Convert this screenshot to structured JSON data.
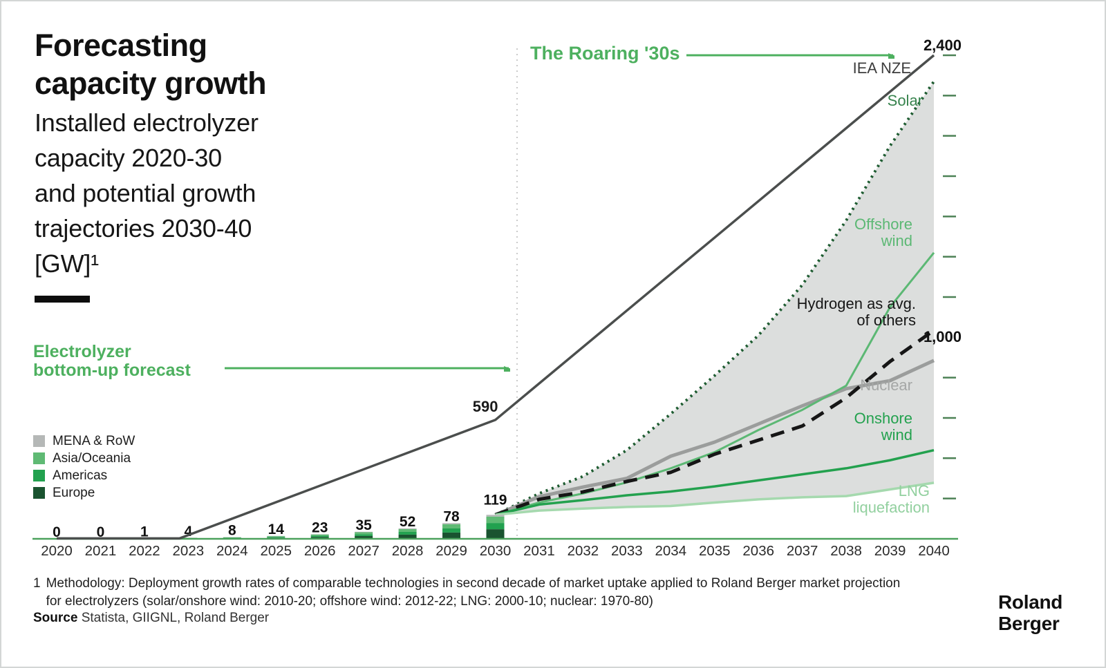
{
  "header": {
    "title": "Forecasting\ncapacity growth",
    "subtitle": "Installed electrolyzer\ncapacity 2020-30\nand potential growth\ntrajectories 2030-40\n[GW]¹"
  },
  "annotations": {
    "bottom_up_forecast": "Electrolyzer\nbottom-up forecast",
    "roaring_30s": "The Roaring '30s",
    "iea_nze": "IEA NZE",
    "solar": "Solar",
    "offshore_wind": "Offshore\nwind",
    "hydrogen_avg": "Hydrogen as avg.\nof others",
    "nuclear": "Nuclear",
    "onshore_wind": "Onshore\nwind",
    "lng_liquefaction": "LNG\nliquefaction",
    "y_axis_top": "2,400",
    "y_axis_mid": "1,000",
    "iea_2030_value": "590"
  },
  "legend": {
    "items": [
      {
        "label": "MENA & RoW",
        "color": "#b5b8b7"
      },
      {
        "label": "Asia/Oceania",
        "color": "#5fba74"
      },
      {
        "label": "Americas",
        "color": "#22a14f"
      },
      {
        "label": "Europe",
        "color": "#1a5330"
      }
    ]
  },
  "footnote": {
    "marker": "1",
    "text": "Methodology: Deployment growth rates of comparable technologies in second decade of market uptake applied to Roland Berger market projection\nfor electrolyzers (solar/onshore wind: 2010-20; offshore wind: 2012-22; LNG: 2000-10; nuclear: 1970-80)"
  },
  "source": {
    "label": "Source",
    "text": "Statista, GIIGNL, Roland Berger"
  },
  "logo": {
    "text": "Roland\nBerger"
  },
  "colors": {
    "brand_green": "#4db05f",
    "axis_green": "#4ba15c",
    "tick_green": "#4c8155",
    "band_gray": "#dcdedd",
    "divider_gray": "#cbcbcb"
  },
  "chart_data": {
    "type": "composite",
    "unit": "GW",
    "title": "Installed electrolyzer capacity 2020-30 and potential growth trajectories 2030-40 [GW]",
    "x_axis_years": [
      2020,
      2021,
      2022,
      2023,
      2024,
      2025,
      2026,
      2027,
      2028,
      2029,
      2030,
      2031,
      2032,
      2033,
      2034,
      2035,
      2036,
      2037,
      2038,
      2039,
      2040
    ],
    "ylim": [
      0,
      2400
    ],
    "right_axis": {
      "tick_interval_gw": 200,
      "labeled_values": [
        2400,
        1000
      ]
    },
    "bars": {
      "type": "bar-stacked",
      "years": [
        2020,
        2021,
        2022,
        2023,
        2024,
        2025,
        2026,
        2027,
        2028,
        2029,
        2030
      ],
      "totals": [
        0,
        0,
        1,
        4,
        8,
        14,
        23,
        35,
        52,
        78,
        119
      ],
      "regions_bottom_to_top": [
        "Europe",
        "Americas",
        "Asia/Oceania",
        "MENA & RoW"
      ],
      "region_colors": [
        "#1a5330",
        "#22a14f",
        "#5fba74",
        "#b5b8b7"
      ],
      "region_fractions_est": [
        0.4,
        0.26,
        0.27,
        0.07
      ]
    },
    "projection_years": [
      2030,
      2031,
      2032,
      2033,
      2034,
      2035,
      2036,
      2037,
      2038,
      2039,
      2040
    ],
    "lines": [
      {
        "name": "IEA NZE",
        "style": "solid",
        "color": "#4b4e4d",
        "width": 3.5,
        "points": [
          [
            2020,
            2
          ],
          [
            2022.8,
            2
          ],
          [
            2030,
            590
          ],
          [
            2040,
            2400
          ]
        ],
        "point_labels": [
          {
            "year": 2030,
            "value": 590,
            "text": "590"
          }
        ]
      },
      {
        "name": "Solar",
        "style": "dotted",
        "color": "#1e5c31",
        "width": 4,
        "values": [
          119,
          225,
          310,
          440,
          620,
          810,
          1010,
          1260,
          1580,
          1950,
          2270
        ]
      },
      {
        "name": "Nuclear",
        "style": "solid",
        "color": "#9b9d9c",
        "width": 5,
        "values": [
          119,
          209,
          257,
          300,
          410,
          480,
          570,
          660,
          745,
          785,
          885
        ]
      },
      {
        "name": "Offshore wind",
        "style": "solid",
        "color": "#5cb874",
        "width": 3,
        "values": [
          119,
          180,
          225,
          280,
          350,
          430,
          540,
          640,
          760,
          1150,
          1420
        ]
      },
      {
        "name": "Hydrogen as avg. of others",
        "style": "dashed",
        "color": "#161616",
        "width": 5,
        "values": [
          119,
          196,
          233,
          285,
          330,
          420,
          490,
          560,
          700,
          880,
          1035
        ]
      },
      {
        "name": "Onshore wind",
        "style": "solid",
        "color": "#23a14e",
        "width": 3.5,
        "values": [
          119,
          170,
          192,
          216,
          235,
          260,
          290,
          320,
          350,
          390,
          440
        ]
      },
      {
        "name": "LNG liquefaction",
        "style": "solid",
        "color": "#a5d9ae",
        "width": 3.5,
        "values": [
          119,
          140,
          150,
          158,
          163,
          180,
          196,
          206,
          212,
          245,
          278
        ]
      }
    ],
    "band": {
      "upper": "Solar",
      "lower": "LNG liquefaction",
      "color": "#dcdedd"
    }
  }
}
